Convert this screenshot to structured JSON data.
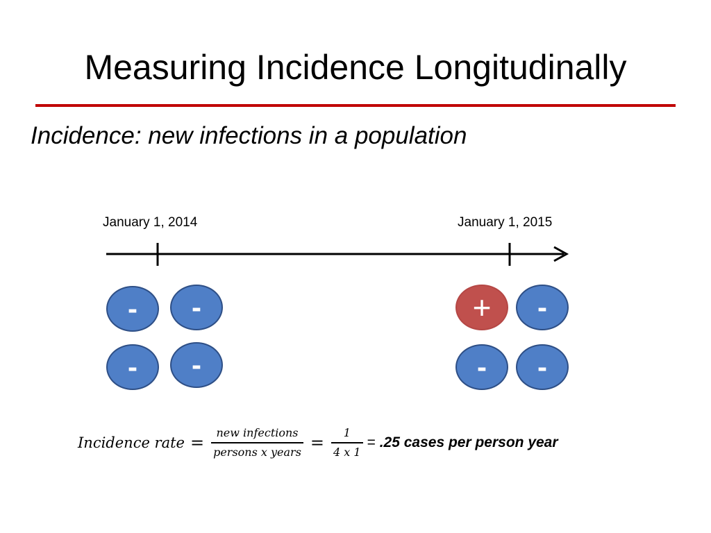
{
  "title": "Measuring Incidence Longitudinally",
  "subtitle": "Incidence: new infections in a population",
  "timeline": {
    "start_label": "January 1, 2014",
    "end_label": "January 1, 2015"
  },
  "groups": {
    "start": [
      "-",
      "-",
      "-",
      "-"
    ],
    "end": [
      "+",
      "-",
      "-",
      "-"
    ]
  },
  "colors": {
    "negative": "#4f7fc7",
    "positive": "#c0504d",
    "rule": "#c00000"
  },
  "formula": {
    "lhs": "Incidence rate",
    "eq": "=",
    "frac1_num": "new infections",
    "frac1_den": "persons x years",
    "frac2_num": "1",
    "frac2_den": "4 x 1",
    "result_eq": "=",
    "result": ".25 cases per person year"
  }
}
